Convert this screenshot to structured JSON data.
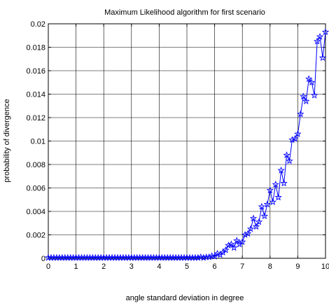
{
  "chart_data": {
    "type": "line",
    "title": "Maximum Likelihood algorithm for first scenario",
    "xlabel": "angle standard deviation in degree",
    "ylabel": "probability of divergence",
    "xlim": [
      0,
      10
    ],
    "ylim": [
      0,
      0.02
    ],
    "grid": true,
    "x_ticks": [
      "0",
      "1",
      "2",
      "3",
      "4",
      "5",
      "6",
      "7",
      "8",
      "9",
      "10"
    ],
    "y_ticks": [
      "0",
      "0.002",
      "0.004",
      "0.006",
      "0.008",
      "0.01",
      "0.012",
      "0.014",
      "0.016",
      "0.018",
      "0.02"
    ],
    "line_color": "#0000ff",
    "marker": "star",
    "series": [
      {
        "x": [
          0,
          0.1,
          0.2,
          0.3,
          0.4,
          0.5,
          0.6,
          0.7,
          0.8,
          0.9,
          1.0,
          1.1,
          1.2,
          1.3,
          1.4,
          1.5,
          1.6,
          1.7,
          1.8,
          1.9,
          2.0,
          2.1,
          2.2,
          2.3,
          2.4,
          2.5,
          2.6,
          2.7,
          2.8,
          2.9,
          3.0,
          3.1,
          3.2,
          3.3,
          3.4,
          3.5,
          3.6,
          3.7,
          3.8,
          3.9,
          4.0,
          4.1,
          4.2,
          4.3,
          4.4,
          4.5,
          4.6,
          4.7,
          4.8,
          4.9,
          5.0,
          5.1,
          5.2,
          5.3,
          5.4,
          5.5,
          5.6,
          5.7,
          5.8,
          5.9,
          6.0,
          6.1,
          6.2,
          6.3,
          6.4,
          6.5,
          6.6,
          6.7,
          6.8,
          6.9,
          7.0,
          7.1,
          7.2,
          7.3,
          7.4,
          7.5,
          7.6,
          7.7,
          7.8,
          7.9,
          8.0,
          8.1,
          8.2,
          8.3,
          8.4,
          8.5,
          8.6,
          8.7,
          8.8,
          8.9,
          9.0,
          9.1,
          9.2,
          9.3,
          9.4,
          9.5,
          9.6,
          9.7,
          9.8,
          9.9,
          10.0
        ],
        "y": [
          5e-05,
          5e-05,
          5e-05,
          5e-05,
          5e-05,
          5e-05,
          5e-05,
          5e-05,
          5e-05,
          5e-05,
          5e-05,
          5e-05,
          5e-05,
          5e-05,
          5e-05,
          5e-05,
          5e-05,
          5e-05,
          5e-05,
          5e-05,
          5e-05,
          5e-05,
          5e-05,
          5e-05,
          5e-05,
          5e-05,
          5e-05,
          5e-05,
          5e-05,
          5e-05,
          5e-05,
          5e-05,
          5e-05,
          5e-05,
          5e-05,
          5e-05,
          5e-05,
          5e-05,
          5e-05,
          5e-05,
          5e-05,
          5e-05,
          5e-05,
          5e-05,
          5e-05,
          5e-05,
          5e-05,
          5e-05,
          5e-05,
          5e-05,
          5e-05,
          5e-05,
          5e-05,
          5e-05,
          5e-05,
          0.0001,
          5e-05,
          0.0001,
          0.0001,
          0.0002,
          0.00015,
          0.0004,
          0.0003,
          0.0005,
          0.0007,
          0.0011,
          0.0012,
          0.0009,
          0.0015,
          0.0012,
          0.0014,
          0.002,
          0.0021,
          0.0025,
          0.0034,
          0.0027,
          0.0031,
          0.0044,
          0.0036,
          0.0046,
          0.0058,
          0.0048,
          0.0063,
          0.0052,
          0.0075,
          0.0064,
          0.0088,
          0.0083,
          0.0101,
          0.0102,
          0.0106,
          0.0123,
          0.0138,
          0.0134,
          0.0153,
          0.015,
          0.0139,
          0.0185,
          0.0189,
          0.0171,
          0.0193
        ]
      }
    ]
  }
}
